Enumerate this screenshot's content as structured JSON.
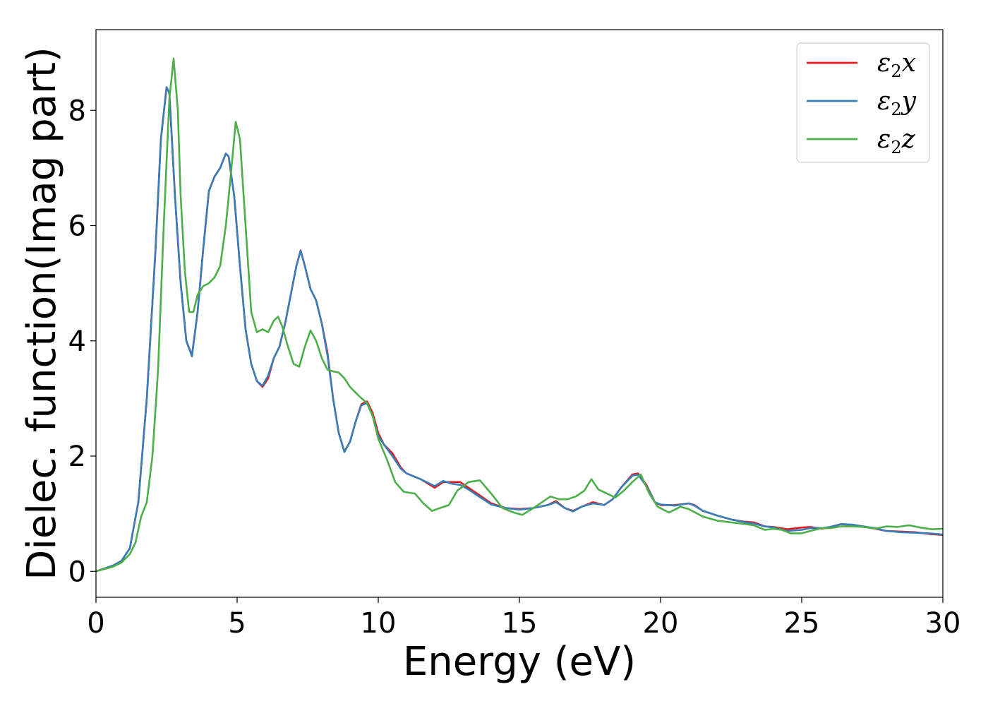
{
  "chart_data": {
    "type": "line",
    "xlabel": "Energy (eV)",
    "ylabel": "Dielec. function(Imag part)",
    "xlim": [
      0,
      30
    ],
    "ylim": [
      -0.45,
      9.4
    ],
    "xticks": [
      0,
      5,
      10,
      15,
      20,
      25,
      30
    ],
    "yticks": [
      0,
      2,
      4,
      6,
      8
    ],
    "grid": false,
    "legend_position": "top-right",
    "series": [
      {
        "name": "ε2x",
        "legend_base": "ε",
        "legend_sub": "2",
        "legend_suffix": "x",
        "color": "#e41a1c",
        "points": [
          [
            0,
            0
          ],
          [
            0.3,
            0.05
          ],
          [
            0.6,
            0.1
          ],
          [
            0.9,
            0.18
          ],
          [
            1.2,
            0.4
          ],
          [
            1.5,
            1.2
          ],
          [
            1.8,
            3.0
          ],
          [
            2.1,
            5.5
          ],
          [
            2.3,
            7.5
          ],
          [
            2.5,
            8.4
          ],
          [
            2.6,
            8.3
          ],
          [
            2.8,
            6.5
          ],
          [
            3.0,
            5.0
          ],
          [
            3.2,
            4.0
          ],
          [
            3.4,
            3.75
          ],
          [
            3.6,
            4.5
          ],
          [
            3.8,
            5.6
          ],
          [
            4.0,
            6.6
          ],
          [
            4.2,
            6.85
          ],
          [
            4.4,
            7.0
          ],
          [
            4.6,
            7.25
          ],
          [
            4.7,
            7.2
          ],
          [
            4.9,
            6.5
          ],
          [
            5.1,
            5.3
          ],
          [
            5.3,
            4.2
          ],
          [
            5.5,
            3.6
          ],
          [
            5.7,
            3.3
          ],
          [
            5.9,
            3.2
          ],
          [
            6.1,
            3.35
          ],
          [
            6.3,
            3.7
          ],
          [
            6.5,
            3.9
          ],
          [
            6.7,
            4.3
          ],
          [
            6.9,
            4.8
          ],
          [
            7.1,
            5.3
          ],
          [
            7.25,
            5.57
          ],
          [
            7.4,
            5.3
          ],
          [
            7.6,
            4.9
          ],
          [
            7.8,
            4.7
          ],
          [
            8.0,
            4.3
          ],
          [
            8.2,
            3.8
          ],
          [
            8.4,
            3.0
          ],
          [
            8.6,
            2.4
          ],
          [
            8.8,
            2.08
          ],
          [
            9.0,
            2.25
          ],
          [
            9.2,
            2.6
          ],
          [
            9.4,
            2.9
          ],
          [
            9.6,
            2.95
          ],
          [
            9.8,
            2.75
          ],
          [
            10.0,
            2.4
          ],
          [
            10.2,
            2.2
          ],
          [
            10.5,
            2.05
          ],
          [
            10.8,
            1.8
          ],
          [
            11.0,
            1.7
          ],
          [
            11.5,
            1.6
          ],
          [
            12.0,
            1.45
          ],
          [
            12.3,
            1.55
          ],
          [
            12.6,
            1.55
          ],
          [
            12.9,
            1.55
          ],
          [
            13.2,
            1.45
          ],
          [
            13.5,
            1.35
          ],
          [
            14.0,
            1.18
          ],
          [
            14.5,
            1.1
          ],
          [
            15.0,
            1.08
          ],
          [
            15.5,
            1.1
          ],
          [
            16.0,
            1.15
          ],
          [
            16.3,
            1.22
          ],
          [
            16.6,
            1.1
          ],
          [
            16.9,
            1.05
          ],
          [
            17.2,
            1.12
          ],
          [
            17.6,
            1.2
          ],
          [
            18.0,
            1.15
          ],
          [
            18.3,
            1.25
          ],
          [
            18.6,
            1.45
          ],
          [
            19.0,
            1.68
          ],
          [
            19.2,
            1.7
          ],
          [
            19.5,
            1.5
          ],
          [
            19.8,
            1.2
          ],
          [
            20.0,
            1.15
          ],
          [
            20.5,
            1.15
          ],
          [
            21.0,
            1.18
          ],
          [
            21.2,
            1.15
          ],
          [
            21.5,
            1.05
          ],
          [
            22.0,
            0.97
          ],
          [
            22.5,
            0.9
          ],
          [
            23.0,
            0.86
          ],
          [
            23.3,
            0.85
          ],
          [
            23.7,
            0.78
          ],
          [
            24.0,
            0.77
          ],
          [
            24.5,
            0.73
          ],
          [
            25.0,
            0.76
          ],
          [
            25.3,
            0.77
          ],
          [
            25.7,
            0.74
          ],
          [
            26.0,
            0.76
          ],
          [
            26.4,
            0.82
          ],
          [
            26.8,
            0.8
          ],
          [
            27.2,
            0.77
          ],
          [
            27.6,
            0.74
          ],
          [
            28.0,
            0.7
          ],
          [
            28.5,
            0.69
          ],
          [
            29.0,
            0.68
          ],
          [
            29.5,
            0.65
          ],
          [
            30.0,
            0.63
          ]
        ]
      },
      {
        "name": "ε2y",
        "legend_base": "ε",
        "legend_sub": "2",
        "legend_suffix": "y",
        "color": "#377eb8",
        "points": [
          [
            0,
            0
          ],
          [
            0.3,
            0.05
          ],
          [
            0.6,
            0.1
          ],
          [
            0.9,
            0.18
          ],
          [
            1.2,
            0.4
          ],
          [
            1.5,
            1.2
          ],
          [
            1.8,
            3.0
          ],
          [
            2.1,
            5.5
          ],
          [
            2.3,
            7.5
          ],
          [
            2.5,
            8.4
          ],
          [
            2.6,
            8.3
          ],
          [
            2.8,
            6.5
          ],
          [
            3.0,
            5.0
          ],
          [
            3.2,
            4.0
          ],
          [
            3.4,
            3.73
          ],
          [
            3.6,
            4.5
          ],
          [
            3.8,
            5.6
          ],
          [
            4.0,
            6.6
          ],
          [
            4.2,
            6.85
          ],
          [
            4.4,
            7.0
          ],
          [
            4.6,
            7.25
          ],
          [
            4.7,
            7.2
          ],
          [
            4.9,
            6.5
          ],
          [
            5.1,
            5.3
          ],
          [
            5.3,
            4.2
          ],
          [
            5.5,
            3.6
          ],
          [
            5.7,
            3.3
          ],
          [
            5.9,
            3.22
          ],
          [
            6.1,
            3.4
          ],
          [
            6.3,
            3.7
          ],
          [
            6.5,
            3.9
          ],
          [
            6.7,
            4.3
          ],
          [
            6.9,
            4.8
          ],
          [
            7.1,
            5.3
          ],
          [
            7.25,
            5.56
          ],
          [
            7.4,
            5.3
          ],
          [
            7.6,
            4.9
          ],
          [
            7.8,
            4.7
          ],
          [
            8.0,
            4.3
          ],
          [
            8.2,
            3.75
          ],
          [
            8.4,
            3.0
          ],
          [
            8.6,
            2.4
          ],
          [
            8.8,
            2.07
          ],
          [
            9.0,
            2.25
          ],
          [
            9.2,
            2.6
          ],
          [
            9.4,
            2.88
          ],
          [
            9.6,
            2.92
          ],
          [
            9.8,
            2.7
          ],
          [
            10.0,
            2.35
          ],
          [
            10.2,
            2.2
          ],
          [
            10.5,
            2.0
          ],
          [
            10.8,
            1.78
          ],
          [
            11.0,
            1.7
          ],
          [
            11.5,
            1.6
          ],
          [
            12.0,
            1.48
          ],
          [
            12.3,
            1.57
          ],
          [
            12.6,
            1.52
          ],
          [
            12.9,
            1.5
          ],
          [
            13.2,
            1.42
          ],
          [
            13.5,
            1.32
          ],
          [
            14.0,
            1.16
          ],
          [
            14.5,
            1.1
          ],
          [
            15.0,
            1.07
          ],
          [
            15.5,
            1.1
          ],
          [
            16.0,
            1.15
          ],
          [
            16.3,
            1.2
          ],
          [
            16.6,
            1.1
          ],
          [
            16.9,
            1.04
          ],
          [
            17.2,
            1.12
          ],
          [
            17.6,
            1.18
          ],
          [
            18.0,
            1.15
          ],
          [
            18.3,
            1.25
          ],
          [
            18.6,
            1.45
          ],
          [
            19.0,
            1.66
          ],
          [
            19.2,
            1.68
          ],
          [
            19.5,
            1.48
          ],
          [
            19.8,
            1.2
          ],
          [
            20.0,
            1.16
          ],
          [
            20.5,
            1.14
          ],
          [
            21.0,
            1.18
          ],
          [
            21.2,
            1.14
          ],
          [
            21.5,
            1.05
          ],
          [
            22.0,
            0.97
          ],
          [
            22.5,
            0.9
          ],
          [
            23.0,
            0.85
          ],
          [
            23.3,
            0.83
          ],
          [
            23.7,
            0.78
          ],
          [
            24.0,
            0.76
          ],
          [
            24.5,
            0.7
          ],
          [
            25.0,
            0.72
          ],
          [
            25.3,
            0.75
          ],
          [
            25.7,
            0.75
          ],
          [
            26.0,
            0.77
          ],
          [
            26.4,
            0.82
          ],
          [
            26.8,
            0.81
          ],
          [
            27.2,
            0.78
          ],
          [
            27.6,
            0.75
          ],
          [
            28.0,
            0.7
          ],
          [
            28.5,
            0.68
          ],
          [
            29.0,
            0.67
          ],
          [
            29.5,
            0.66
          ],
          [
            30.0,
            0.64
          ]
        ]
      },
      {
        "name": "ε2z",
        "legend_base": "ε",
        "legend_sub": "2",
        "legend_suffix": "z",
        "color": "#4daf4a",
        "points": [
          [
            0,
            0
          ],
          [
            0.3,
            0.04
          ],
          [
            0.6,
            0.08
          ],
          [
            0.9,
            0.15
          ],
          [
            1.2,
            0.3
          ],
          [
            1.4,
            0.5
          ],
          [
            1.6,
            0.95
          ],
          [
            1.8,
            1.2
          ],
          [
            2.0,
            2.0
          ],
          [
            2.2,
            3.5
          ],
          [
            2.4,
            6.0
          ],
          [
            2.6,
            8.2
          ],
          [
            2.75,
            8.9
          ],
          [
            2.9,
            8.0
          ],
          [
            3.0,
            6.5
          ],
          [
            3.15,
            5.2
          ],
          [
            3.3,
            4.5
          ],
          [
            3.45,
            4.5
          ],
          [
            3.6,
            4.8
          ],
          [
            3.8,
            4.95
          ],
          [
            4.0,
            5.0
          ],
          [
            4.2,
            5.1
          ],
          [
            4.4,
            5.3
          ],
          [
            4.6,
            6.0
          ],
          [
            4.8,
            7.0
          ],
          [
            4.95,
            7.8
          ],
          [
            5.1,
            7.5
          ],
          [
            5.3,
            6.0
          ],
          [
            5.5,
            4.5
          ],
          [
            5.7,
            4.15
          ],
          [
            5.9,
            4.2
          ],
          [
            6.1,
            4.15
          ],
          [
            6.3,
            4.35
          ],
          [
            6.45,
            4.42
          ],
          [
            6.6,
            4.25
          ],
          [
            6.8,
            3.9
          ],
          [
            7.0,
            3.6
          ],
          [
            7.2,
            3.55
          ],
          [
            7.4,
            3.9
          ],
          [
            7.6,
            4.18
          ],
          [
            7.8,
            4.0
          ],
          [
            8.0,
            3.7
          ],
          [
            8.2,
            3.5
          ],
          [
            8.4,
            3.47
          ],
          [
            8.6,
            3.45
          ],
          [
            8.8,
            3.35
          ],
          [
            9.0,
            3.2
          ],
          [
            9.3,
            3.05
          ],
          [
            9.6,
            2.92
          ],
          [
            9.8,
            2.7
          ],
          [
            10.0,
            2.3
          ],
          [
            10.3,
            1.95
          ],
          [
            10.6,
            1.55
          ],
          [
            10.9,
            1.38
          ],
          [
            11.3,
            1.35
          ],
          [
            11.6,
            1.18
          ],
          [
            11.9,
            1.05
          ],
          [
            12.2,
            1.1
          ],
          [
            12.5,
            1.15
          ],
          [
            12.8,
            1.4
          ],
          [
            13.2,
            1.55
          ],
          [
            13.6,
            1.58
          ],
          [
            14.0,
            1.35
          ],
          [
            14.4,
            1.1
          ],
          [
            14.8,
            1.02
          ],
          [
            15.1,
            0.98
          ],
          [
            15.5,
            1.1
          ],
          [
            15.8,
            1.2
          ],
          [
            16.1,
            1.3
          ],
          [
            16.4,
            1.25
          ],
          [
            16.7,
            1.25
          ],
          [
            17.0,
            1.3
          ],
          [
            17.3,
            1.4
          ],
          [
            17.55,
            1.6
          ],
          [
            17.8,
            1.42
          ],
          [
            18.1,
            1.35
          ],
          [
            18.4,
            1.28
          ],
          [
            18.7,
            1.4
          ],
          [
            19.0,
            1.55
          ],
          [
            19.3,
            1.68
          ],
          [
            19.6,
            1.35
          ],
          [
            19.9,
            1.12
          ],
          [
            20.3,
            1.02
          ],
          [
            20.7,
            1.12
          ],
          [
            21.0,
            1.08
          ],
          [
            21.5,
            0.95
          ],
          [
            22.0,
            0.88
          ],
          [
            22.5,
            0.85
          ],
          [
            23.0,
            0.82
          ],
          [
            23.3,
            0.8
          ],
          [
            23.7,
            0.72
          ],
          [
            24.0,
            0.74
          ],
          [
            24.3,
            0.72
          ],
          [
            24.6,
            0.66
          ],
          [
            25.0,
            0.66
          ],
          [
            25.3,
            0.7
          ],
          [
            25.7,
            0.75
          ],
          [
            26.0,
            0.75
          ],
          [
            26.4,
            0.78
          ],
          [
            26.8,
            0.78
          ],
          [
            27.2,
            0.77
          ],
          [
            27.6,
            0.74
          ],
          [
            28.0,
            0.78
          ],
          [
            28.4,
            0.77
          ],
          [
            28.8,
            0.8
          ],
          [
            29.2,
            0.76
          ],
          [
            29.6,
            0.73
          ],
          [
            30.0,
            0.74
          ]
        ]
      }
    ]
  }
}
